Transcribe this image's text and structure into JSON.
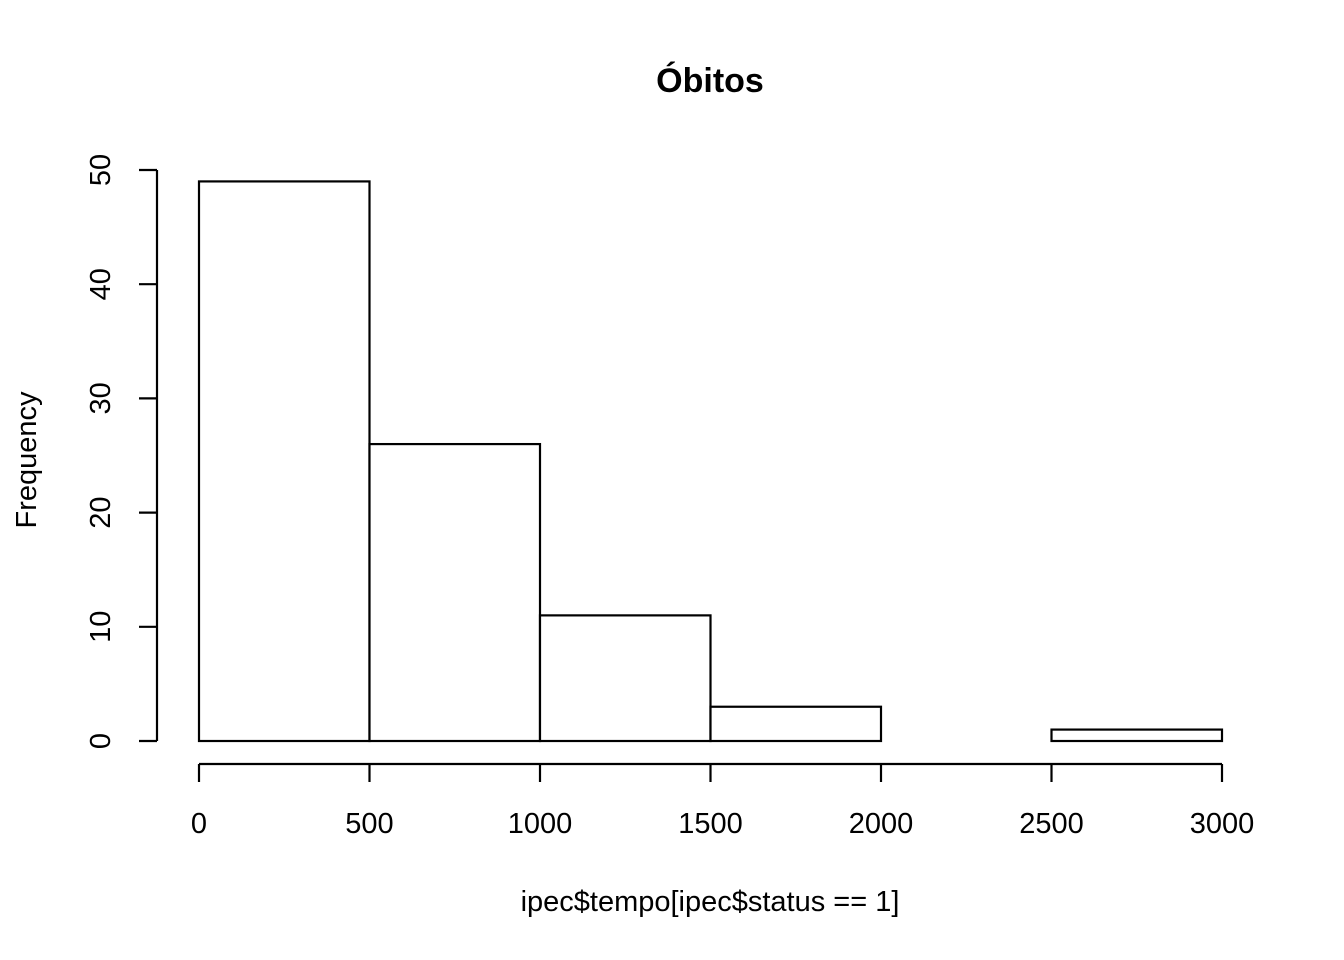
{
  "chart_data": {
    "type": "bar",
    "title": "Óbitos",
    "xlabel": "ipec$tempo[ipec$status == 1]",
    "ylabel": "Frequency",
    "bins": [
      {
        "start": 0,
        "end": 500,
        "count": 49
      },
      {
        "start": 500,
        "end": 1000,
        "count": 26
      },
      {
        "start": 1000,
        "end": 1500,
        "count": 11
      },
      {
        "start": 1500,
        "end": 2000,
        "count": 3
      },
      {
        "start": 2000,
        "end": 2500,
        "count": 0
      },
      {
        "start": 2500,
        "end": 3000,
        "count": 1
      }
    ],
    "xlim": [
      0,
      3000
    ],
    "ylim": [
      0,
      50
    ],
    "xticks": [
      0,
      500,
      1000,
      1500,
      2000,
      2500,
      3000
    ],
    "yticks": [
      0,
      10,
      20,
      30,
      40,
      50
    ],
    "grid": false,
    "legend": "none"
  }
}
